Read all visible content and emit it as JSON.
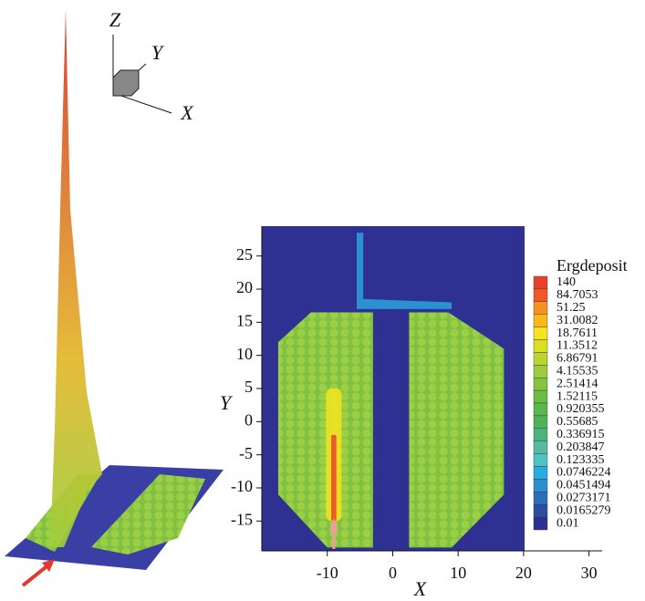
{
  "chart_data": [
    {
      "type": "surface3d",
      "axis_labels": {
        "z": "Z",
        "y": "Y",
        "x": "X"
      }
    },
    {
      "type": "heatmap",
      "xlabel": "X",
      "ylabel": "Y",
      "xlim": [
        -20,
        32
      ],
      "xticks": [
        -10,
        0,
        10,
        20,
        30
      ],
      "ylim": [
        -19.5,
        29.5
      ],
      "yticks": [
        -15,
        -10,
        -5,
        0,
        5,
        10,
        15,
        20,
        25
      ],
      "colorbar": {
        "title": "Ergdeposit",
        "levels": [
          140,
          84.7053,
          51.25,
          31.0082,
          18.7611,
          11.3512,
          6.86791,
          4.15535,
          2.51414,
          1.52115,
          0.920355,
          0.55685,
          0.336915,
          0.203847,
          0.123335,
          0.0746224,
          0.0451494,
          0.0273171,
          0.0165279,
          0.01
        ],
        "colors": [
          "#e8402a",
          "#f05a28",
          "#f7921e",
          "#fbb917",
          "#f6e51e",
          "#d8e021",
          "#b9d532",
          "#9ccb3b",
          "#86c440",
          "#6cbd45",
          "#5bb74b",
          "#4fb35a",
          "#4db37d",
          "#55bca0",
          "#4ec3c6",
          "#29abe2",
          "#2a8fd0",
          "#2a6fb8",
          "#2d4ea0",
          "#2e3192"
        ]
      }
    }
  ]
}
